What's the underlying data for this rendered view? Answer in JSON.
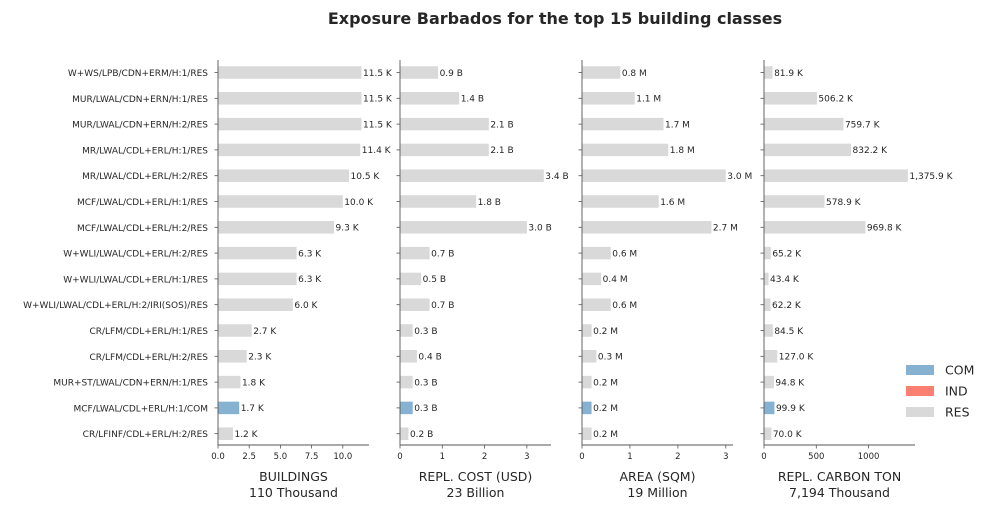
{
  "chart_data": {
    "type": "bar",
    "orientation": "horizontal",
    "title": "Exposure Barbados for the top 15 building classes",
    "categories": [
      "W+WS/LPB/CDN+ERM/H:1/RES",
      "MUR/LWAL/CDN+ERN/H:1/RES",
      "MUR/LWAL/CDN+ERN/H:2/RES",
      "MR/LWAL/CDL+ERL/H:1/RES",
      "MR/LWAL/CDL+ERL/H:2/RES",
      "MCF/LWAL/CDL+ERL/H:1/RES",
      "MCF/LWAL/CDL+ERL/H:2/RES",
      "W+WLI/LWAL/CDL+ERL/H:2/RES",
      "W+WLI/LWAL/CDL+ERL/H:1/RES",
      "W+WLI/LWAL/CDL+ERL/H:2/IRI(SOS)/RES",
      "CR/LFM/CDL+ERL/H:1/RES",
      "CR/LFM/CDL+ERL/H:2/RES",
      "MUR+ST/LWAL/CDN+ERN/H:1/RES",
      "MCF/LWAL/CDL+ERL/H:1/COM",
      "CR/LFINF/CDL+ERL/H:2/RES"
    ],
    "occupancy": [
      "RES",
      "RES",
      "RES",
      "RES",
      "RES",
      "RES",
      "RES",
      "RES",
      "RES",
      "RES",
      "RES",
      "RES",
      "RES",
      "COM",
      "RES"
    ],
    "legend": {
      "placement": "right",
      "entries": [
        {
          "name": "COM",
          "color": "#86b1d1"
        },
        {
          "name": "IND",
          "color": "#fb8072"
        },
        {
          "name": "RES",
          "color": "#d9d9d9"
        }
      ]
    },
    "panels": [
      {
        "name": "buildings",
        "xlabel": "BUILDINGS",
        "subtitle": "110 Thousand",
        "xlim": [
          0,
          12.1
        ],
        "ticks": [
          0,
          2.5,
          5,
          7.5,
          10
        ],
        "tick_labels": [
          "0.0",
          "2.5",
          "5.0",
          "7.5",
          "10.0"
        ],
        "values": [
          11.5,
          11.5,
          11.5,
          11.4,
          10.5,
          10.0,
          9.3,
          6.3,
          6.3,
          6.0,
          2.7,
          2.3,
          1.8,
          1.7,
          1.2
        ],
        "labels": [
          "11.5 K",
          "11.5 K",
          "11.5 K",
          "11.4 K",
          "10.5 K",
          "10.0 K",
          "9.3 K",
          "6.3 K",
          "6.3 K",
          "6.0 K",
          "2.7 K",
          "2.3 K",
          "1.8 K",
          "1.7 K",
          "1.2 K"
        ]
      },
      {
        "name": "repl-cost",
        "xlabel": "REPL. COST (USD)",
        "subtitle": "23 Billion",
        "xlim": [
          0,
          3.57
        ],
        "ticks": [
          0,
          1,
          2,
          3
        ],
        "tick_labels": [
          "0",
          "1",
          "2",
          "3"
        ],
        "values": [
          0.9,
          1.4,
          2.1,
          2.1,
          3.4,
          1.8,
          3.0,
          0.7,
          0.5,
          0.7,
          0.3,
          0.4,
          0.3,
          0.3,
          0.2
        ],
        "labels": [
          "0.9 B",
          "1.4 B",
          "2.1 B",
          "2.1 B",
          "3.4 B",
          "1.8 B",
          "3.0 B",
          "0.7 B",
          "0.5 B",
          "0.7 B",
          "0.3 B",
          "0.4 B",
          "0.3 B",
          "0.3 B",
          "0.2 B"
        ]
      },
      {
        "name": "area",
        "xlabel": "AREA (SQM)",
        "subtitle": "19 Million",
        "xlim": [
          0,
          3.15
        ],
        "ticks": [
          0,
          1,
          2,
          3
        ],
        "tick_labels": [
          "0",
          "1",
          "2",
          "3"
        ],
        "values": [
          0.8,
          1.1,
          1.7,
          1.8,
          3.0,
          1.6,
          2.7,
          0.6,
          0.4,
          0.6,
          0.2,
          0.3,
          0.2,
          0.2,
          0.2
        ],
        "labels": [
          "0.8 M",
          "1.1 M",
          "1.7 M",
          "1.8 M",
          "3.0 M",
          "1.6 M",
          "2.7 M",
          "0.6 M",
          "0.4 M",
          "0.6 M",
          "0.2 M",
          "0.3 M",
          "0.2 M",
          "0.2 M",
          "0.2 M"
        ]
      },
      {
        "name": "carbon",
        "xlabel": "REPL. CARBON TON",
        "subtitle": "7,194 Thousand",
        "xlim": [
          0,
          1444
        ],
        "ticks": [
          0,
          500,
          1000
        ],
        "tick_labels": [
          "0",
          "500",
          "1000"
        ],
        "values": [
          81.9,
          506.2,
          759.7,
          832.2,
          1375.9,
          578.9,
          969.8,
          65.2,
          43.4,
          62.2,
          84.5,
          127.0,
          94.8,
          99.9,
          70.0
        ],
        "labels": [
          "81.9 K",
          "506.2 K",
          "759.7 K",
          "832.2 K",
          "1,375.9 K",
          "578.9 K",
          "969.8 K",
          "65.2 K",
          "43.4 K",
          "62.2 K",
          "84.5 K",
          "127.0 K",
          "94.8 K",
          "99.9 K",
          "70.0 K"
        ]
      }
    ]
  }
}
